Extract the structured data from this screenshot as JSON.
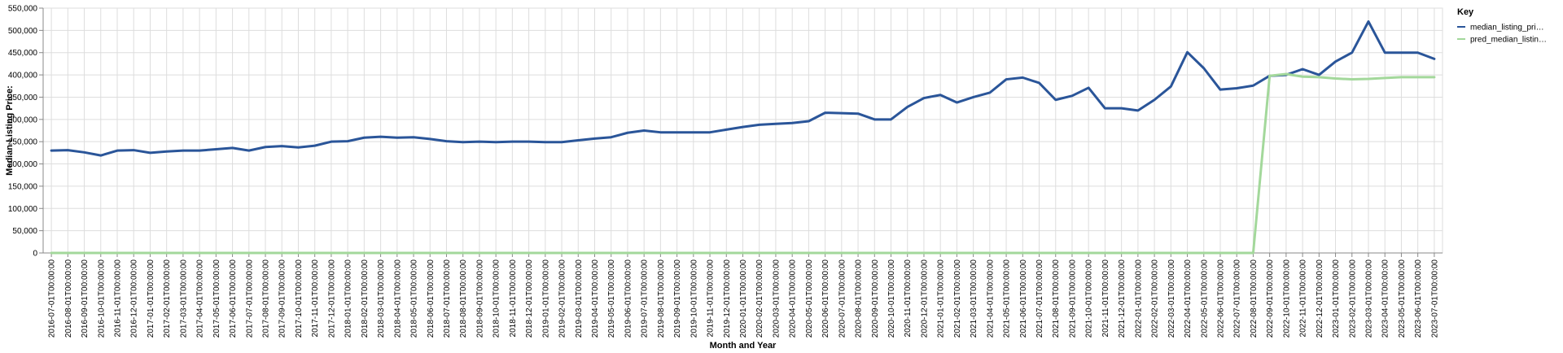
{
  "chart_data": {
    "type": "line",
    "xlabel": "Month and Year",
    "ylabel": "Median Listing Price:",
    "ylim": [
      0,
      550000
    ],
    "yticks": [
      0,
      50000,
      100000,
      150000,
      200000,
      250000,
      300000,
      350000,
      400000,
      450000,
      500000,
      550000
    ],
    "ytick_labels": [
      "0",
      "50,000",
      "100,000",
      "150,000",
      "200,000",
      "250,000",
      "300,000",
      "350,000",
      "400,000",
      "450,000",
      "500,000",
      "550,000"
    ],
    "grid": true,
    "legend": {
      "title": "Key",
      "placement": "right"
    },
    "x": [
      "2016-07-01T00:00:00",
      "2016-08-01T00:00:00",
      "2016-09-01T00:00:00",
      "2016-10-01T00:00:00",
      "2016-11-01T00:00:00",
      "2016-12-01T00:00:00",
      "2017-01-01T00:00:00",
      "2017-02-01T00:00:00",
      "2017-03-01T00:00:00",
      "2017-04-01T00:00:00",
      "2017-05-01T00:00:00",
      "2017-06-01T00:00:00",
      "2017-07-01T00:00:00",
      "2017-08-01T00:00:00",
      "2017-09-01T00:00:00",
      "2017-10-01T00:00:00",
      "2017-11-01T00:00:00",
      "2017-12-01T00:00:00",
      "2018-01-01T00:00:00",
      "2018-02-01T00:00:00",
      "2018-03-01T00:00:00",
      "2018-04-01T00:00:00",
      "2018-05-01T00:00:00",
      "2018-06-01T00:00:00",
      "2018-07-01T00:00:00",
      "2018-08-01T00:00:00",
      "2018-09-01T00:00:00",
      "2018-10-01T00:00:00",
      "2018-11-01T00:00:00",
      "2018-12-01T00:00:00",
      "2019-01-01T00:00:00",
      "2019-02-01T00:00:00",
      "2019-03-01T00:00:00",
      "2019-04-01T00:00:00",
      "2019-05-01T00:00:00",
      "2019-06-01T00:00:00",
      "2019-07-01T00:00:00",
      "2019-08-01T00:00:00",
      "2019-09-01T00:00:00",
      "2019-10-01T00:00:00",
      "2019-11-01T00:00:00",
      "2019-12-01T00:00:00",
      "2020-01-01T00:00:00",
      "2020-02-01T00:00:00",
      "2020-03-01T00:00:00",
      "2020-04-01T00:00:00",
      "2020-05-01T00:00:00",
      "2020-06-01T00:00:00",
      "2020-07-01T00:00:00",
      "2020-08-01T00:00:00",
      "2020-09-01T00:00:00",
      "2020-10-01T00:00:00",
      "2020-11-01T00:00:00",
      "2020-12-01T00:00:00",
      "2021-01-01T00:00:00",
      "2021-02-01T00:00:00",
      "2021-03-01T00:00:00",
      "2021-04-01T00:00:00",
      "2021-05-01T00:00:00",
      "2021-06-01T00:00:00",
      "2021-07-01T00:00:00",
      "2021-08-01T00:00:00",
      "2021-09-01T00:00:00",
      "2021-10-01T00:00:00",
      "2021-11-01T00:00:00",
      "2021-12-01T00:00:00",
      "2022-01-01T00:00:00",
      "2022-02-01T00:00:00",
      "2022-03-01T00:00:00",
      "2022-04-01T00:00:00",
      "2022-05-01T00:00:00",
      "2022-06-01T00:00:00",
      "2022-07-01T00:00:00",
      "2022-08-01T00:00:00",
      "2022-09-01T00:00:00",
      "2022-10-01T00:00:00",
      "2022-11-01T00:00:00",
      "2022-12-01T00:00:00",
      "2023-01-01T00:00:00",
      "2023-02-01T00:00:00",
      "2023-03-01T00:00:00",
      "2023-04-01T00:00:00",
      "2023-05-01T00:00:00",
      "2023-06-01T00:00:00",
      "2023-07-01T00:00:00"
    ],
    "series": [
      {
        "name": "median_listing_pri…",
        "color": "#2a5599",
        "values": [
          230000,
          231000,
          226000,
          219000,
          230000,
          231000,
          225000,
          228000,
          230000,
          230000,
          233000,
          236000,
          230000,
          238000,
          240000,
          237000,
          241000,
          250000,
          251000,
          259000,
          261000,
          259000,
          260000,
          256000,
          251000,
          249000,
          250000,
          249000,
          250000,
          250000,
          249000,
          249000,
          253000,
          257000,
          260000,
          270000,
          275000,
          271000,
          271000,
          271000,
          271000,
          277000,
          283000,
          288000,
          290000,
          292000,
          296000,
          315000,
          314000,
          313000,
          300000,
          300000,
          328000,
          348000,
          355000,
          338000,
          350000,
          360000,
          390000,
          394000,
          382000,
          344000,
          353000,
          371000,
          325000,
          325000,
          320000,
          344000,
          374000,
          451000,
          415000,
          367000,
          370000,
          376000,
          398000,
          400000,
          413000,
          400000,
          430000,
          450000,
          520000,
          450000,
          450000,
          450000,
          436000
        ]
      },
      {
        "name": "pred_median_listin…",
        "color": "#a3d89b",
        "values": [
          0,
          0,
          0,
          0,
          0,
          0,
          0,
          0,
          0,
          0,
          0,
          0,
          0,
          0,
          0,
          0,
          0,
          0,
          0,
          0,
          0,
          0,
          0,
          0,
          0,
          0,
          0,
          0,
          0,
          0,
          0,
          0,
          0,
          0,
          0,
          0,
          0,
          0,
          0,
          0,
          0,
          0,
          0,
          0,
          0,
          0,
          0,
          0,
          0,
          0,
          0,
          0,
          0,
          0,
          0,
          0,
          0,
          0,
          0,
          0,
          0,
          0,
          0,
          0,
          0,
          0,
          0,
          0,
          0,
          0,
          0,
          0,
          0,
          0,
          398000,
          402000,
          396000,
          395000,
          392000,
          390000,
          391000,
          393000,
          395000,
          395000,
          395000
        ]
      }
    ]
  }
}
